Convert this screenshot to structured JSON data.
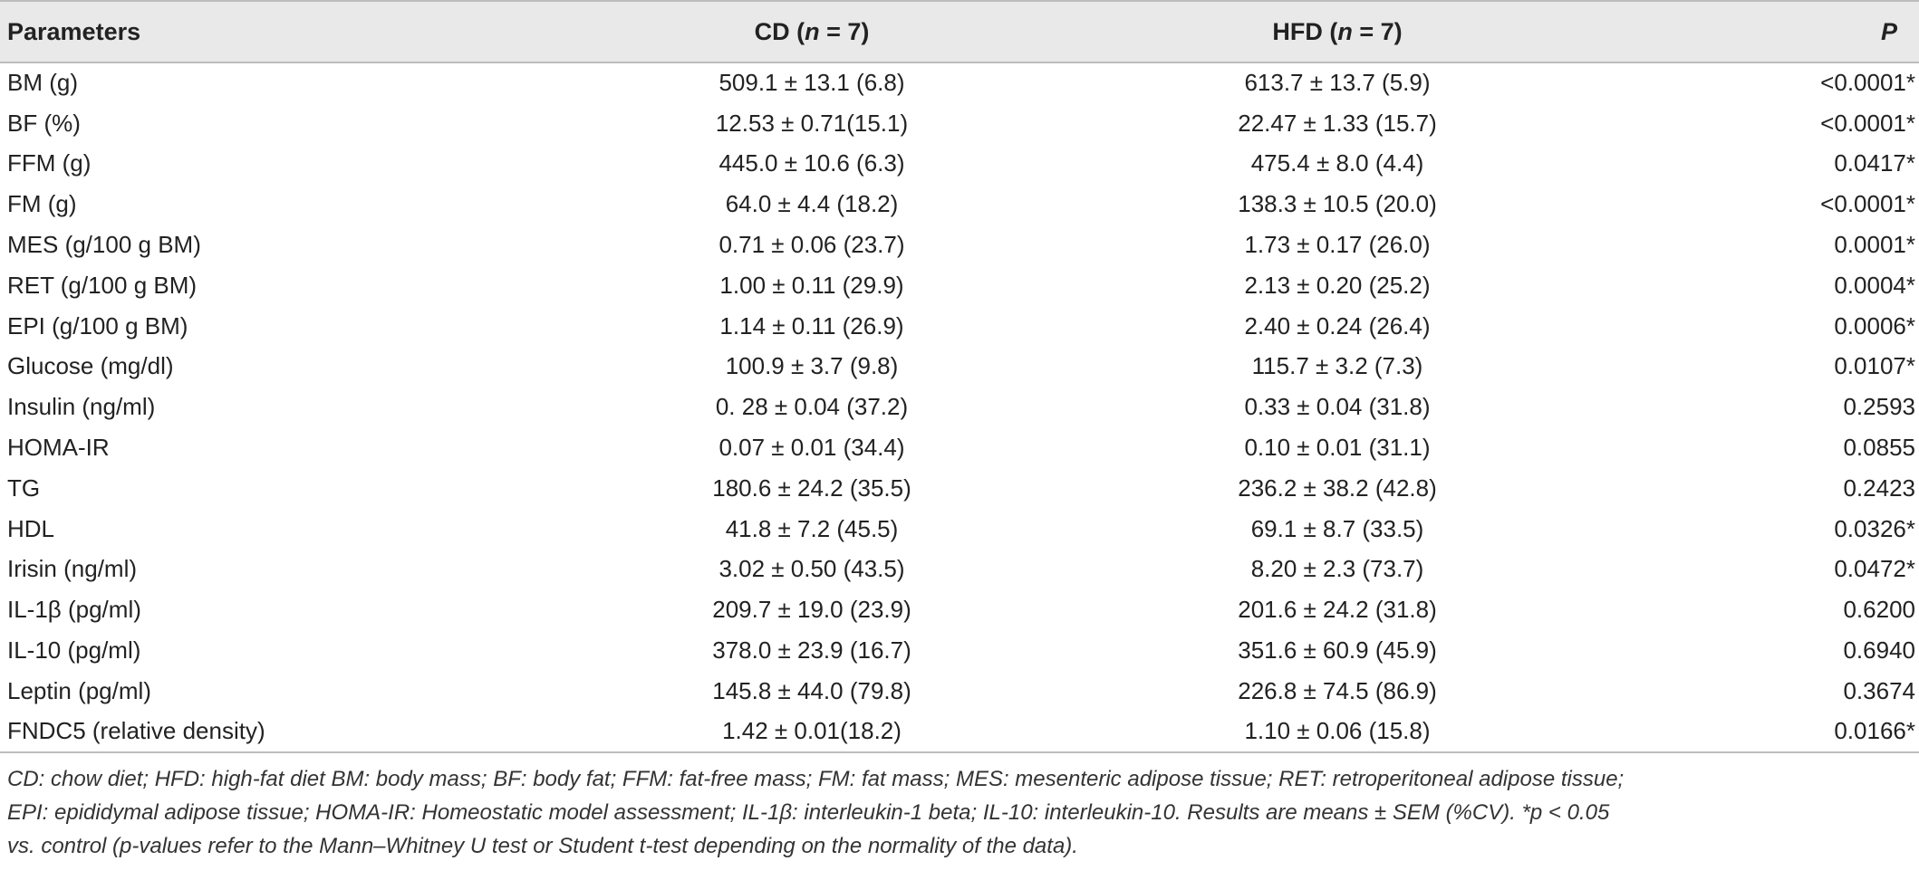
{
  "table": {
    "header": {
      "parameters": "Parameters",
      "cd_prefix": "CD (",
      "cd_n": "n",
      "cd_suffix": " = 7)",
      "hfd_prefix": "HFD (",
      "hfd_n": "n",
      "hfd_suffix": " = 7)",
      "p": "P"
    },
    "rows": [
      {
        "param": "BM (g)",
        "cd": "509.1 ± 13.1 (6.8)",
        "hfd": "613.7 ± 13.7 (5.9)",
        "p": "<0.0001*"
      },
      {
        "param": "BF (%)",
        "cd": "12.53 ± 0.71(15.1)",
        "hfd": "22.47 ± 1.33 (15.7)",
        "p": "<0.0001*"
      },
      {
        "param": "FFM (g)",
        "cd": "445.0 ± 10.6 (6.3)",
        "hfd": "475.4 ± 8.0 (4.4)",
        "p": "0.0417*"
      },
      {
        "param": "FM (g)",
        "cd": "64.0 ± 4.4 (18.2)",
        "hfd": "138.3 ± 10.5 (20.0)",
        "p": "<0.0001*"
      },
      {
        "param": "MES (g/100 g BM)",
        "cd": "0.71 ± 0.06 (23.7)",
        "hfd": "1.73 ± 0.17 (26.0)",
        "p": "0.0001*"
      },
      {
        "param": "RET (g/100 g BM)",
        "cd": "1.00 ± 0.11 (29.9)",
        "hfd": "2.13 ± 0.20 (25.2)",
        "p": "0.0004*"
      },
      {
        "param": "EPI (g/100 g BM)",
        "cd": "1.14 ± 0.11 (26.9)",
        "hfd": "2.40 ± 0.24 (26.4)",
        "p": "0.0006*"
      },
      {
        "param": "Glucose (mg/dl)",
        "cd": "100.9 ± 3.7 (9.8)",
        "hfd": "115.7 ± 3.2 (7.3)",
        "p": "0.0107*"
      },
      {
        "param": "Insulin (ng/ml)",
        "cd": "0. 28 ± 0.04 (37.2)",
        "hfd": "0.33 ± 0.04 (31.8)",
        "p": "0.2593"
      },
      {
        "param": "HOMA-IR",
        "cd": "0.07 ± 0.01 (34.4)",
        "hfd": "0.10 ± 0.01 (31.1)",
        "p": "0.0855"
      },
      {
        "param": "TG",
        "cd": "180.6 ± 24.2 (35.5)",
        "hfd": "236.2 ± 38.2 (42.8)",
        "p": "0.2423"
      },
      {
        "param": "HDL",
        "cd": "41.8 ± 7.2 (45.5)",
        "hfd": "69.1 ± 8.7 (33.5)",
        "p": "0.0326*"
      },
      {
        "param": "Irisin (ng/ml)",
        "cd": "3.02 ± 0.50 (43.5)",
        "hfd": "8.20 ± 2.3 (73.7)",
        "p": "0.0472*"
      },
      {
        "param": "IL-1β (pg/ml)",
        "cd": "209.7 ± 19.0 (23.9)",
        "hfd": "201.6 ± 24.2 (31.8)",
        "p": "0.6200"
      },
      {
        "param": "IL-10 (pg/ml)",
        "cd": "378.0 ± 23.9 (16.7)",
        "hfd": "351.6 ± 60.9 (45.9)",
        "p": "0.6940"
      },
      {
        "param": "Leptin (pg/ml)",
        "cd": "145.8 ± 44.0 (79.8)",
        "hfd": "226.8 ± 74.5 (86.9)",
        "p": "0.3674"
      },
      {
        "param": "FNDC5 (relative density)",
        "cd": "1.42 ± 0.01(18.2)",
        "hfd": "1.10 ± 0.06 (15.8)",
        "p": "0.0166*"
      }
    ]
  },
  "footnote": {
    "line1": "CD: chow diet; HFD: high-fat diet BM: body mass; BF: body fat; FFM: fat-free mass; FM: fat mass; MES: mesenteric adipose tissue; RET: retroperitoneal adipose tissue;",
    "line2": "EPI: epididymal adipose tissue; HOMA-IR: Homeostatic model assessment; IL-1β: interleukin-1 beta; IL-10: interleukin-10. Results are means ± SEM (%CV). *p < 0.05",
    "line3": "vs. control (p-values refer to the Mann–Whitney U test or Student t-test depending on the normality of the data)."
  }
}
